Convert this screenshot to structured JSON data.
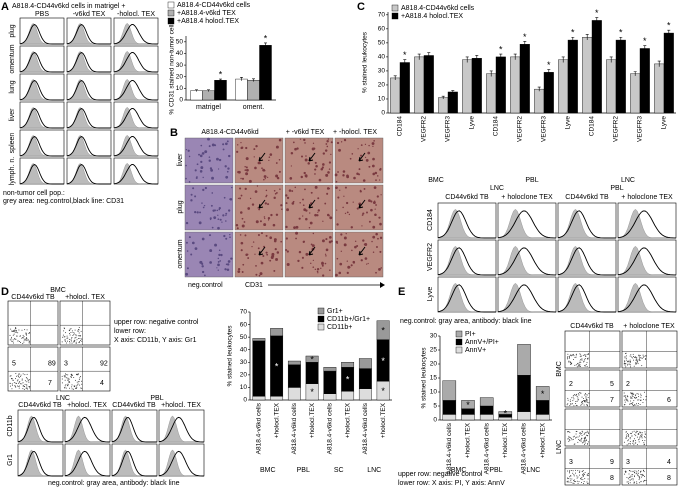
{
  "figure": {
    "panel_a": {
      "label": "A",
      "title": "A818.4-CD44v6kd cells in matrigel +",
      "columns": [
        "PBS",
        "-v6kd TEX",
        "-holocl. TEX"
      ],
      "rows": [
        "plug",
        "omentum",
        "lung",
        "liver",
        "spleen",
        "lymph. n."
      ],
      "footer": [
        "non-tumor cell pop.:",
        "grey area: neg.control,black line: CD31"
      ]
    },
    "panel_b": {
      "label": "B",
      "columns": [
        "A818.4-CD44v6kd",
        "+ -v6kd TEX",
        "+ -holocl. TEX"
      ],
      "rows": [
        "liver",
        "plug",
        "omentum"
      ],
      "footer": [
        "neg.control",
        "CD31"
      ]
    },
    "panel_c": {
      "label": "C",
      "groups": [
        "LNC",
        "PBL"
      ],
      "columns": [
        "CD44v6kd TB",
        "+ holoclone TEX",
        "CD44v6kd TB",
        "+ holoclone TEX"
      ],
      "rows": [
        "CD184",
        "VEGFR2",
        "Lyve"
      ],
      "footer": "neg.control: gray area, antibody: black line"
    },
    "panel_d": {
      "label": "D",
      "dot_title": "BMC",
      "dot_columns": [
        "CD44v6kd TB",
        "+holocl. TEX"
      ],
      "dot_numbers": [
        {},
        {},
        {
          "tl": "5",
          "tr": "89",
          "br": "7"
        },
        {
          "tl": "3",
          "tr": "92",
          "br": "4"
        }
      ],
      "notes": [
        "upper row: negative control",
        "lower row:",
        "X axis: CD11b, Y axis: Gr1"
      ],
      "groups": [
        "LNC",
        "PBL"
      ],
      "columns": [
        "CD44v6kd TB",
        "+holocl. TEX",
        "CD44v6kd TB",
        "+holocl. TEX"
      ],
      "rows": [
        "CD11b",
        "Gr1"
      ],
      "footer": "neg.control: gray area, antibody: black line"
    },
    "panel_e": {
      "label": "E",
      "columns": [
        "CD44v6kd TB",
        "+ holoclone TEX"
      ],
      "rows": [
        "BMC",
        "LNC"
      ],
      "dot_numbers": [
        {},
        {},
        {
          "tl": "2",
          "tr": "5",
          "br": "7"
        },
        {
          "tl": "2",
          "br": "6"
        },
        {},
        {},
        {
          "tl": "3",
          "tr": "9",
          "br": "8"
        },
        {
          "tl": "3",
          "tr": "4",
          "br": "8"
        }
      ],
      "notes": [
        "upper row: negative control",
        "lower row: X axis: PI, Y axis: AnnV"
      ]
    }
  },
  "chart_data": [
    {
      "type": "bar",
      "ylabel": "% CD31 stained non-tumor cells",
      "categories": [
        "matrigel",
        "oment."
      ],
      "series": [
        {
          "name": "A818.4-CD44v6kd cells",
          "color": "#ffffff",
          "values": [
            8,
            18
          ],
          "errors": [
            0.8,
            1.5
          ]
        },
        {
          "name": "+A818.4-v6kd TEX",
          "color": "#b0b0b0",
          "values": [
            8,
            17
          ],
          "errors": [
            0.8,
            1.2
          ]
        },
        {
          "name": "+A818.4 holocl.TEX",
          "color": "#000000",
          "values": [
            17,
            47
          ],
          "errors": [
            1,
            2
          ]
        }
      ],
      "ylim": [
        0,
        55
      ],
      "yticks": [
        0,
        10,
        20,
        30,
        40,
        50
      ],
      "annotations": [
        {
          "text": "*",
          "series": 2,
          "index": 0
        },
        {
          "text": "*",
          "series": 2,
          "index": 1
        }
      ]
    },
    {
      "type": "bar",
      "ylabel": "% stained leukocytes",
      "categories": [
        "CD184",
        "VEGFR2",
        "VEGFR3",
        "Lyve",
        "CD184",
        "VEGFR2",
        "VEGFR3",
        "Lyve",
        "CD184",
        "VEGFR2",
        "VEGFR3",
        "Lyve"
      ],
      "groups": [
        "BMC",
        "PBL",
        "LNC"
      ],
      "series": [
        {
          "name": "A818.4-CD44v6kd cells",
          "color": "#c8c8c8",
          "values": [
            25,
            40,
            11,
            38,
            28,
            40,
            17,
            38,
            54,
            38,
            28,
            35
          ],
          "errors": [
            1.5,
            2,
            1,
            2,
            2,
            2,
            1.5,
            2,
            2,
            2,
            1.5,
            2
          ]
        },
        {
          "name": "+A818.4 holocl.TEX",
          "color": "#000000",
          "values": [
            36,
            41,
            15,
            39,
            40,
            49,
            29,
            52,
            66,
            52,
            46,
            57
          ],
          "errors": [
            2,
            2,
            1,
            2,
            2,
            2,
            2,
            2,
            2,
            2,
            2,
            2
          ]
        }
      ],
      "ylim": [
        0,
        72
      ],
      "yticks": [
        0,
        10,
        20,
        30,
        40,
        50,
        60,
        70
      ],
      "annotations": [
        {
          "text": "*",
          "series": 1,
          "index": 0
        },
        {
          "text": "*",
          "series": 1,
          "index": 4
        },
        {
          "text": "*",
          "series": 1,
          "index": 5
        },
        {
          "text": "*",
          "series": 1,
          "index": 6
        },
        {
          "text": "*",
          "series": 1,
          "index": 7
        },
        {
          "text": "*",
          "series": 1,
          "index": 8
        },
        {
          "text": "*",
          "series": 1,
          "index": 9
        },
        {
          "text": "*",
          "series": 1,
          "index": 10
        },
        {
          "text": "*",
          "series": 1,
          "index": 11
        }
      ]
    },
    {
      "type": "stacked_bar",
      "ylabel": "% stained leukocytes",
      "categories": [
        "A818.4-v6kd cells",
        "+holocl.TEX",
        "A818.4-v6kd cells",
        "+holocl.TEX",
        "A818.4-v6kd cells",
        "+holocl.TEX",
        "A818.4-v6kd cells",
        "+holocl.TEX"
      ],
      "groups": [
        "BMC",
        "PBL",
        "SC",
        "LNC"
      ],
      "series": [
        {
          "name": "Gr1+",
          "color": "#999999",
          "values": [
            2,
            6,
            3,
            5,
            3,
            4,
            8,
            15
          ]
        },
        {
          "name": "CD11b+/Gr1+",
          "color": "#000000",
          "values": [
            44,
            48,
            18,
            17,
            18,
            19,
            16,
            33
          ]
        },
        {
          "name": "CD11b+",
          "color": "#dddddd",
          "values": [
            3,
            3,
            10,
            13,
            5,
            7,
            9,
            15
          ]
        }
      ],
      "ylim": [
        0,
        70
      ],
      "yticks": [
        0,
        10,
        20,
        30,
        40,
        50,
        60,
        70
      ],
      "annotations": [
        {
          "text": "*",
          "series": 1,
          "index": 1
        },
        {
          "text": "*",
          "series": 0,
          "index": 3
        },
        {
          "text": "*",
          "series": 2,
          "index": 3
        },
        {
          "text": "*",
          "series": 1,
          "index": 5
        },
        {
          "text": "*",
          "series": 0,
          "index": 7
        },
        {
          "text": "*",
          "series": 1,
          "index": 7
        },
        {
          "text": "*",
          "series": 2,
          "index": 7
        }
      ]
    },
    {
      "type": "stacked_bar",
      "ylabel": "% stained leukocytes",
      "categories": [
        "A818.4-v6kd cells",
        "+holocl.TEX",
        "A818.4-v6kd cells",
        "+holocl.TEX",
        "A818.4-v6kd cells",
        "+holocl.TEX"
      ],
      "groups": [
        "BMC",
        "PBL",
        "LNC"
      ],
      "series": [
        {
          "name": "PI+",
          "color": "#aaaaaa",
          "values": [
            7,
            3,
            3,
            1,
            11,
            5
          ]
        },
        {
          "name": "AnnV+/PI+",
          "color": "#000000",
          "values": [
            5,
            2,
            3,
            1,
            13,
            5
          ]
        },
        {
          "name": "AnnV+",
          "color": "#dddddd",
          "values": [
            2,
            2,
            2,
            1,
            3,
            2
          ]
        }
      ],
      "ylim": [
        0,
        30
      ],
      "yticks": [
        0,
        5,
        10,
        15,
        20,
        25,
        30
      ],
      "annotations": [
        {
          "text": "*",
          "series": 0,
          "index": 1
        },
        {
          "text": "*",
          "series": 0,
          "index": 3
        },
        {
          "text": "*",
          "series": 0,
          "index": 5
        }
      ]
    }
  ]
}
